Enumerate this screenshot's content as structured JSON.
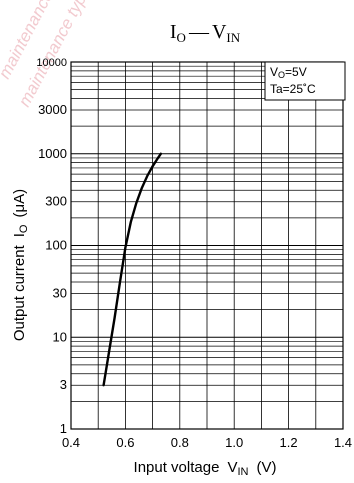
{
  "chart_data": {
    "type": "line",
    "title": {
      "main_letter": "I",
      "main_sub": "O",
      "dash": "—",
      "right_letter": "V",
      "right_sub": "IN"
    },
    "xlabel": {
      "text": "Input voltage",
      "symbol": "V",
      "symbol_sub": "IN",
      "unit": "(V)"
    },
    "ylabel": {
      "text": "Output current",
      "symbol": "I",
      "symbol_sub": "O",
      "unit": "(μA)"
    },
    "x_scale": "linear",
    "y_scale": "log",
    "xlim": [
      0.4,
      1.4
    ],
    "ylim": [
      1,
      10000
    ],
    "x_ticks": [
      "0.4",
      "0.6",
      "0.8",
      "1.0",
      "1.2",
      "1.4"
    ],
    "y_ticks": [
      {
        "value": 1,
        "label": "1"
      },
      {
        "value": 3,
        "label": "3"
      },
      {
        "value": 10,
        "label": "10"
      },
      {
        "value": 30,
        "label": "30"
      },
      {
        "value": 100,
        "label": "100"
      },
      {
        "value": 300,
        "label": "300"
      },
      {
        "value": 1000,
        "label": "1000"
      },
      {
        "value": 3000,
        "label": "3000"
      },
      {
        "value": 10000,
        "label": "10000"
      }
    ],
    "grid": true,
    "legend": {
      "placement": "top-right",
      "line1_main": "V",
      "line1_sub": "O",
      "line1_rest": "=5V",
      "line2": "Ta=25˚C"
    },
    "series": [
      {
        "x": [
          0.52,
          0.54,
          0.56,
          0.58,
          0.6,
          0.62,
          0.64,
          0.66,
          0.68,
          0.7,
          0.72,
          0.73
        ],
        "y": [
          3,
          7,
          16,
          40,
          95,
          180,
          290,
          420,
          570,
          730,
          900,
          1000
        ]
      }
    ],
    "colors": {
      "line": "#000000",
      "grid": "#000000",
      "watermark": "#e8a0a8"
    }
  },
  "watermark": {
    "line1": "maintenance/discontinued",
    "line2": "maintenance type,"
  }
}
